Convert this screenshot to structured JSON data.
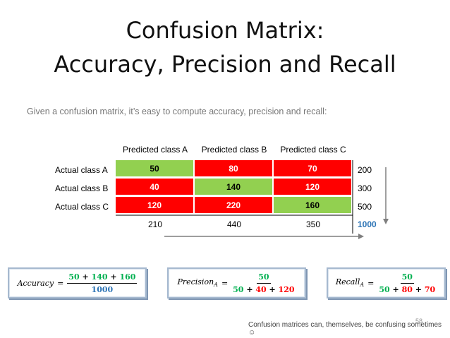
{
  "title": {
    "line1": "Confusion Matrix:",
    "line2": "Accuracy, Precision and Recall"
  },
  "subtitle": "Given a confusion matrix, it’s easy to compute accuracy, precision and recall:",
  "matrix": {
    "column_headers": [
      "Predicted class A",
      "Predicted class B",
      "Predicted class C"
    ],
    "rows": [
      {
        "label": "Actual class A",
        "cells": [
          "50",
          "80",
          "70"
        ],
        "total": "200"
      },
      {
        "label": "Actual class B",
        "cells": [
          "40",
          "140",
          "120"
        ],
        "total": "300"
      },
      {
        "label": "Actual class C",
        "cells": [
          "120",
          "220",
          "160"
        ],
        "total": "500"
      }
    ],
    "column_totals": [
      "210",
      "440",
      "350"
    ],
    "grand_total": "1000",
    "colors": {
      "correct": "#92d050",
      "incorrect": "#ff0000",
      "total": "#2e75b6"
    }
  },
  "formulas": {
    "accuracy": {
      "lhs": "Accuracy",
      "eq": "=",
      "num": [
        "50",
        "+",
        "140",
        "+",
        "160"
      ],
      "den": "1000"
    },
    "precision": {
      "lhs": "Precision",
      "sub": "A",
      "eq": "=",
      "num": "50",
      "den": [
        "50",
        "+",
        "40",
        "+",
        "120"
      ]
    },
    "recall": {
      "lhs": "Recall",
      "sub": "A",
      "eq": "=",
      "num": "50",
      "den": [
        "50",
        "+",
        "80",
        "+",
        "70"
      ]
    }
  },
  "footer": "Confusion matrices can, themselves, be confusing sometimes ☺",
  "page_number": "58"
}
